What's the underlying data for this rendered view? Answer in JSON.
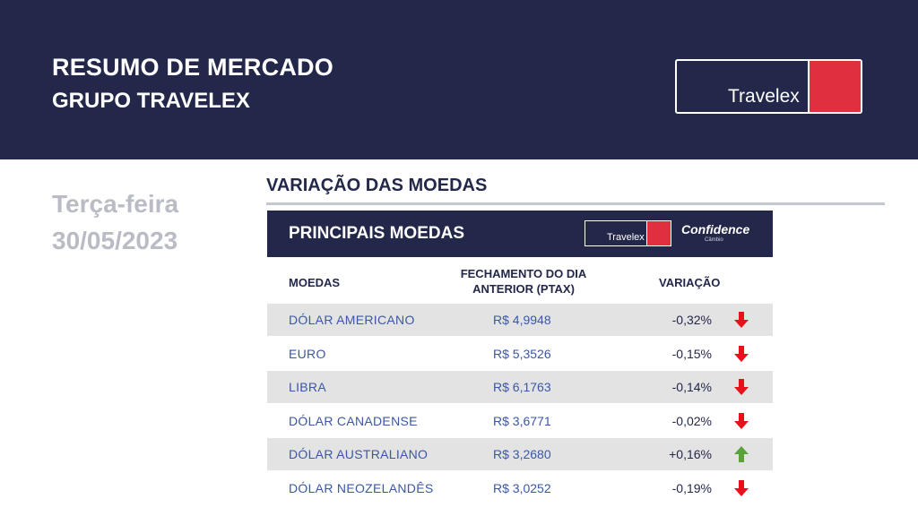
{
  "header": {
    "title": "RESUMO DE MERCADO",
    "subtitle": "GRUPO TRAVELEX",
    "logo_text": "Travelex",
    "colors": {
      "navy": "#23284a",
      "red": "#e0303f"
    }
  },
  "date": {
    "weekday": "Terça-feira",
    "date": "30/05/2023"
  },
  "section": {
    "title": "VARIAÇÃO DAS MOEDAS"
  },
  "panel": {
    "title": "PRINCIPAIS MOEDAS",
    "logo_text": "Travelex",
    "partner_logo": "Confidence",
    "partner_sub": "Câmbio",
    "columns": {
      "moedas": "MOEDAS",
      "fechamento": "FECHAMENTO DO DIA ANTERIOR (PTAX)",
      "variacao": "VARIAÇÃO"
    },
    "rows": [
      {
        "name": "DÓLAR AMERICANO",
        "value": "R$ 4,9948",
        "variation": "-0,32%",
        "direction": "down-arrow-icon"
      },
      {
        "name": "EURO",
        "value": "R$ 5,3526",
        "variation": "-0,15%",
        "direction": "down-arrow-icon"
      },
      {
        "name": "LIBRA",
        "value": "R$ 6,1763",
        "variation": "-0,14%",
        "direction": "down-arrow-icon"
      },
      {
        "name": "DÓLAR CANADENSE",
        "value": "R$ 3,6771",
        "variation": "-0,02%",
        "direction": "down-arrow-icon"
      },
      {
        "name": "DÓLAR AUSTRALIANO",
        "value": "R$ 3,2680",
        "variation": "+0,16%",
        "direction": "up-arrow-icon"
      },
      {
        "name": "DÓLAR NEOZELANDÊS",
        "value": "R$ 3,0252",
        "variation": "-0,19%",
        "direction": "down-arrow-icon"
      }
    ],
    "colors": {
      "down": "#e8101b",
      "up": "#5aa33a",
      "shade": "#e3e3e3"
    }
  }
}
